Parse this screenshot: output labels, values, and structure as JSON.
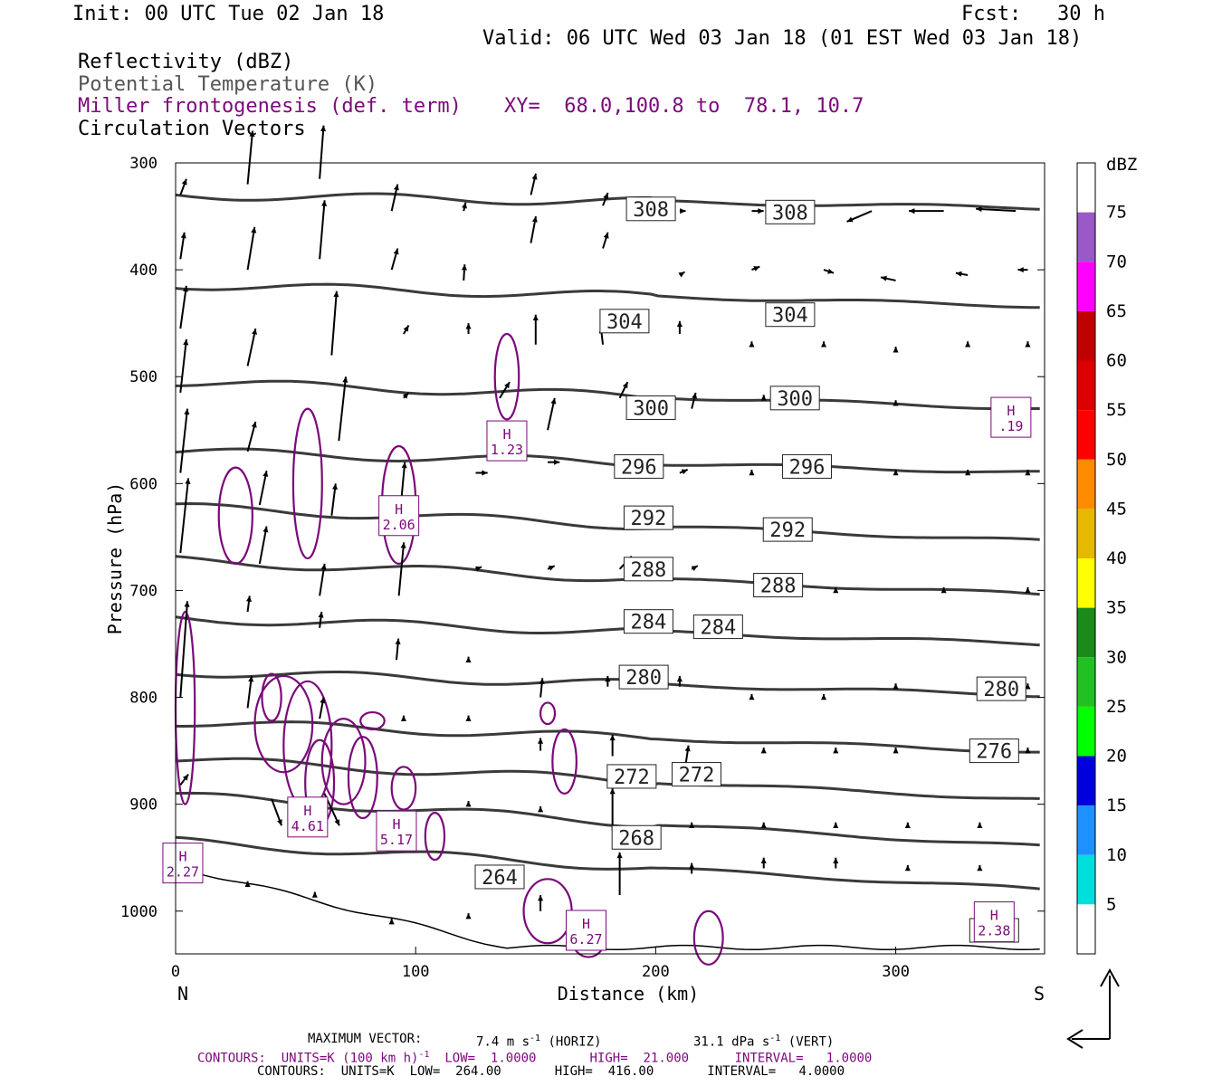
{
  "header": {
    "init": "Init: 00 UTC Tue 02 Jan 18",
    "fcst": "Fcst:   30 h",
    "valid": "Valid: 06 UTC Wed 03 Jan 18 (01 EST Wed 03 Jan 18)",
    "field1": "Reflectivity (dBZ)",
    "field2": "Potential Temperature (K)",
    "field3": "Miller frontogenesis (def. term)",
    "xy": "XY=  68.0,100.8 to  78.1, 10.7",
    "field4": "Circulation Vectors"
  },
  "footer": {
    "max_vector_label": "MAXIMUM VECTOR:",
    "max_vector_h": "7.4 m s",
    "max_vector_h_exp": "-1",
    "max_vector_h_tail": " (HORIZ)",
    "max_vector_v": "31.1 dPa s",
    "max_vector_v_exp": "-1",
    "max_vector_v_tail": " (VERT)",
    "contours1_a": "CONTOURS:  UNITS=K (100 km h)",
    "contours1_exp": "-1",
    "contours1_b": "  LOW=  1.0000       HIGH=  21.000      INTERVAL=   1.0000",
    "contours2": "CONTOURS:  UNITS=K  LOW=  264.00       HIGH=  416.00       INTERVAL=   4.0000"
  },
  "colors": {
    "theta": "#3a3a3a",
    "frontogenesis": "#7a0a7a",
    "vector": "#000000"
  },
  "chart_data": {
    "type": "cross-section",
    "xlabel": "Distance (km)",
    "ylabel": "Pressure (hPa)",
    "xlim": [
      0,
      362
    ],
    "ylim": [
      1040,
      300
    ],
    "x_ticks": [
      "0",
      "100",
      "200",
      "300"
    ],
    "y_ticks": [
      "300",
      "400",
      "500",
      "600",
      "700",
      "800",
      "900",
      "1000"
    ],
    "left_end_label": "N",
    "right_end_label": "S",
    "theta_contour_labels": [
      {
        "text": "308",
        "x": 198,
        "p": 343
      },
      {
        "text": "308",
        "x": 256,
        "p": 346
      },
      {
        "text": "304",
        "x": 187,
        "p": 448
      },
      {
        "text": "304",
        "x": 256,
        "p": 442
      },
      {
        "text": "300",
        "x": 198,
        "p": 529
      },
      {
        "text": "300",
        "x": 258,
        "p": 520
      },
      {
        "text": "296",
        "x": 193,
        "p": 584
      },
      {
        "text": "296",
        "x": 263,
        "p": 584
      },
      {
        "text": "292",
        "x": 197,
        "p": 632
      },
      {
        "text": "292",
        "x": 255,
        "p": 643
      },
      {
        "text": "288",
        "x": 197,
        "p": 680
      },
      {
        "text": "288",
        "x": 251,
        "p": 695
      },
      {
        "text": "284",
        "x": 197,
        "p": 729
      },
      {
        "text": "284",
        "x": 226,
        "p": 734
      },
      {
        "text": "280",
        "x": 195,
        "p": 781
      },
      {
        "text": "280",
        "x": 344,
        "p": 792
      },
      {
        "text": "276",
        "x": 341,
        "p": 850
      },
      {
        "text": "272",
        "x": 190,
        "p": 874
      },
      {
        "text": "272",
        "x": 217,
        "p": 872
      },
      {
        "text": "268",
        "x": 192,
        "p": 931
      },
      {
        "text": "264",
        "x": 135,
        "p": 968
      },
      {
        "text": "268",
        "x": 341,
        "p": 1018
      }
    ],
    "frontogenesis_maxima": [
      {
        "label": "H",
        "value": "1.23",
        "x": 138,
        "p": 560
      },
      {
        "label": "H",
        "value": "2.06",
        "x": 93,
        "p": 630
      },
      {
        "label": "H",
        "value": "4.61",
        "x": 55,
        "p": 912
      },
      {
        "label": "H",
        "value": "5.17",
        "x": 92,
        "p": 925
      },
      {
        "label": "H",
        "value": "2.27",
        "x": 3,
        "p": 955
      },
      {
        "label": "H",
        "value": "6.27",
        "x": 171,
        "p": 1018
      },
      {
        "label": "H",
        "value": ".19",
        "x": 348,
        "p": 538
      },
      {
        "label": "H",
        "value": "2.38",
        "x": 341,
        "p": 1010
      }
    ],
    "colorbar": {
      "title": "dBZ",
      "labels": [
        "75",
        "70",
        "65",
        "60",
        "55",
        "50",
        "45",
        "40",
        "35",
        "30",
        "25",
        "20",
        "15",
        "10",
        "5"
      ],
      "colors": [
        "#ffffff",
        "#9b59c8",
        "#ff00ff",
        "#c00000",
        "#dd0000",
        "#ff0000",
        "#ff8c00",
        "#e6b800",
        "#ffff00",
        "#1a8a1a",
        "#22c022",
        "#00ff00",
        "#0000dd",
        "#1e90ff",
        "#00dddd",
        "#ffffff"
      ]
    }
  }
}
